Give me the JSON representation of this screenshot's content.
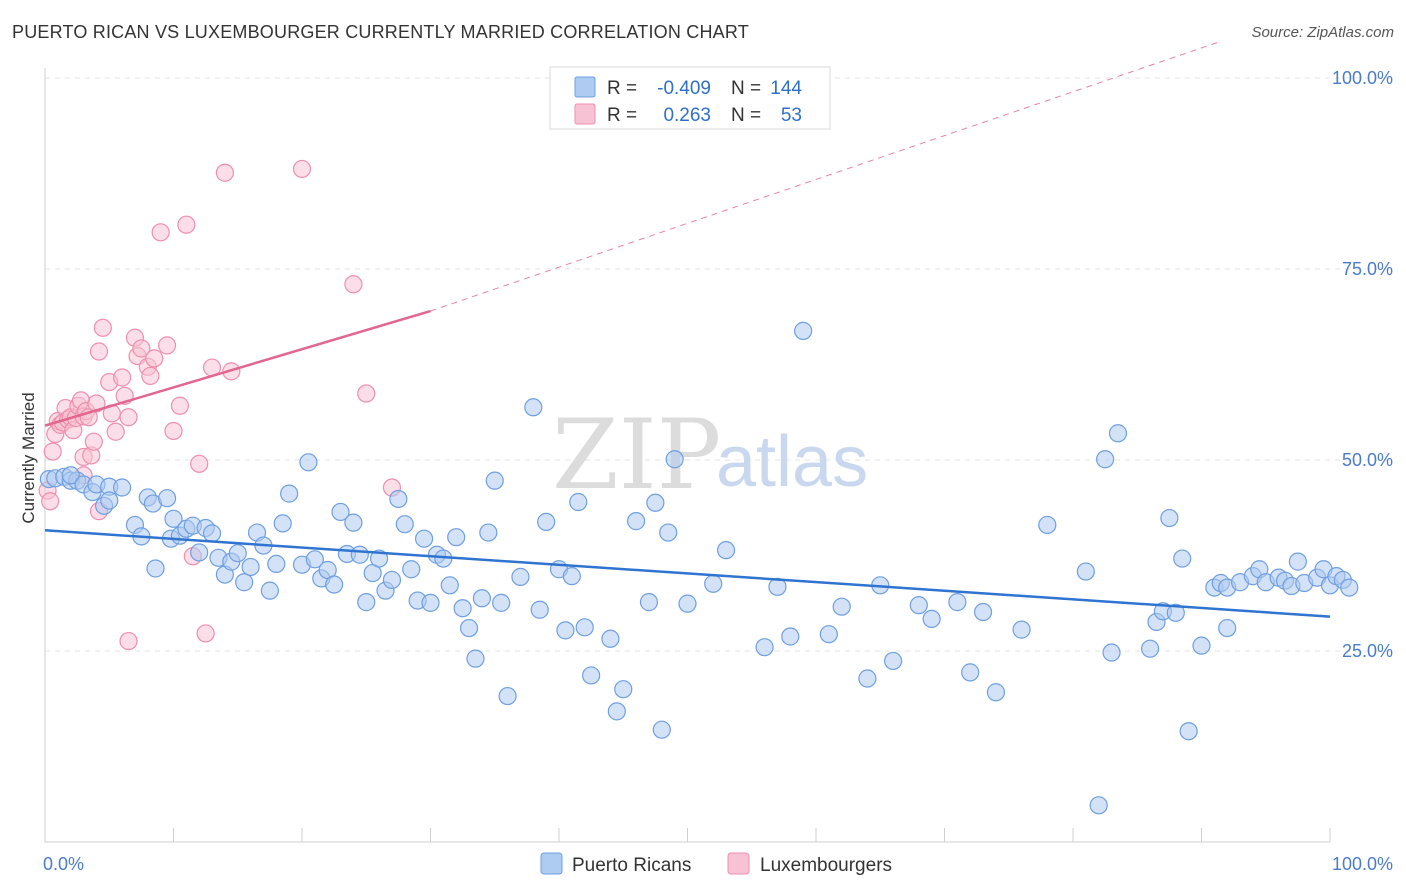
{
  "header": {
    "title": "PUERTO RICAN VS LUXEMBOURGER CURRENTLY MARRIED CORRELATION CHART",
    "source": "Source: ZipAtlas.com"
  },
  "watermark": {
    "zip": "ZIP",
    "atlas": "atlas"
  },
  "colors": {
    "blue": "#6f9fe0",
    "blue_fill": "#aecbf1",
    "blue_line": "#2f74d0",
    "pink": "#ee8fae",
    "pink_fill": "#f7c3d4",
    "pink_line": "#e2668f",
    "grid": "#e3e3e3",
    "tick_text": "#4a7cc9"
  },
  "legend": {
    "r_label": "R =",
    "n_label": "N =",
    "rows": [
      {
        "r": "-0.409",
        "n": "144"
      },
      {
        "r": "0.263",
        "n": "53"
      }
    ]
  },
  "bottom_legend": [
    "Puerto Ricans",
    "Luxembourgers"
  ],
  "chart_data": {
    "type": "scatter",
    "title": "PUERTO RICAN VS LUXEMBOURGER CURRENTLY MARRIED CORRELATION CHART",
    "xlabel": "",
    "ylabel": "Currently Married",
    "xlim": [
      0,
      100
    ],
    "ylim": [
      0,
      100
    ],
    "x_tick_labels": [
      "0.0%",
      "100.0%"
    ],
    "y_tick_labels": [
      "25.0%",
      "50.0%",
      "75.0%",
      "100.0%"
    ],
    "y_ticks": [
      25,
      50,
      75,
      100
    ],
    "grid": true,
    "legend_position": "top-center",
    "series": [
      {
        "name": "Puerto Ricans",
        "r": -0.409,
        "n": 144,
        "trend": {
          "x": [
            0,
            100
          ],
          "y": [
            40.8,
            29.5
          ]
        },
        "points": [
          [
            0.3,
            47.5
          ],
          [
            0.8,
            47.6
          ],
          [
            1.5,
            47.8
          ],
          [
            2,
            47.3
          ],
          [
            2.5,
            47.3
          ],
          [
            2,
            48
          ],
          [
            3,
            46.8
          ],
          [
            3.7,
            45.8
          ],
          [
            4,
            46.8
          ],
          [
            4.6,
            44
          ],
          [
            5,
            46.5
          ],
          [
            5,
            44.7
          ],
          [
            6,
            46.4
          ],
          [
            7,
            41.5
          ],
          [
            7.5,
            40
          ],
          [
            8,
            45.1
          ],
          [
            8.4,
            44.3
          ],
          [
            8.6,
            35.8
          ],
          [
            9.5,
            45
          ],
          [
            9.8,
            39.7
          ],
          [
            10,
            42.3
          ],
          [
            10.5,
            40.1
          ],
          [
            11,
            41
          ],
          [
            11.5,
            41.4
          ],
          [
            12,
            37.9
          ],
          [
            12.5,
            41.1
          ],
          [
            13,
            40.4
          ],
          [
            13.5,
            37.2
          ],
          [
            14,
            35
          ],
          [
            14.5,
            36.7
          ],
          [
            15,
            37.8
          ],
          [
            15.5,
            34
          ],
          [
            16,
            36
          ],
          [
            16.5,
            40.5
          ],
          [
            17,
            38.8
          ],
          [
            17.5,
            32.9
          ],
          [
            18,
            36.4
          ],
          [
            18.5,
            41.7
          ],
          [
            19,
            45.6
          ],
          [
            20,
            36.3
          ],
          [
            20.5,
            49.7
          ],
          [
            21,
            37
          ],
          [
            21.5,
            34.5
          ],
          [
            22,
            35.6
          ],
          [
            22.5,
            33.7
          ],
          [
            23,
            43.2
          ],
          [
            23.5,
            37.7
          ],
          [
            24,
            41.8
          ],
          [
            24.5,
            37.6
          ],
          [
            25,
            31.4
          ],
          [
            25.5,
            35.2
          ],
          [
            26,
            37.1
          ],
          [
            26.5,
            32.9
          ],
          [
            27,
            34.3
          ],
          [
            27.5,
            44.9
          ],
          [
            28,
            41.6
          ],
          [
            28.5,
            35.7
          ],
          [
            29,
            31.6
          ],
          [
            29.5,
            39.7
          ],
          [
            30,
            31.3
          ],
          [
            30.5,
            37.6
          ],
          [
            31,
            37.1
          ],
          [
            31.5,
            33.6
          ],
          [
            32,
            39.9
          ],
          [
            32.5,
            30.6
          ],
          [
            33,
            28
          ],
          [
            33.5,
            24
          ],
          [
            34,
            31.9
          ],
          [
            34.5,
            40.5
          ],
          [
            35,
            47.3
          ],
          [
            35.5,
            31.3
          ],
          [
            36,
            19.1
          ],
          [
            37,
            34.7
          ],
          [
            38,
            56.9
          ],
          [
            38.5,
            30.4
          ],
          [
            39,
            41.9
          ],
          [
            40,
            35.7
          ],
          [
            40.5,
            27.7
          ],
          [
            41,
            34.8
          ],
          [
            41.5,
            44.5
          ],
          [
            42,
            28.1
          ],
          [
            42.5,
            21.8
          ],
          [
            44,
            26.6
          ],
          [
            44.5,
            17.1
          ],
          [
            45,
            20
          ],
          [
            46,
            42
          ],
          [
            47,
            31.4
          ],
          [
            47.5,
            44.4
          ],
          [
            48,
            14.7
          ],
          [
            48.5,
            40.5
          ],
          [
            49,
            50.1
          ],
          [
            50,
            31.2
          ],
          [
            52,
            33.8
          ],
          [
            53,
            38.2
          ],
          [
            56,
            25.5
          ],
          [
            57,
            33.4
          ],
          [
            58,
            26.9
          ],
          [
            59,
            66.9
          ],
          [
            61,
            27.2
          ],
          [
            62,
            30.8
          ],
          [
            64,
            21.4
          ],
          [
            65,
            33.6
          ],
          [
            66,
            23.7
          ],
          [
            68,
            31
          ],
          [
            69,
            29.2
          ],
          [
            71,
            31.4
          ],
          [
            72,
            22.2
          ],
          [
            73,
            30.1
          ],
          [
            74,
            19.6
          ],
          [
            76,
            27.8
          ],
          [
            78,
            41.5
          ],
          [
            81,
            35.4
          ],
          [
            82,
            4.8
          ],
          [
            82.5,
            50.1
          ],
          [
            83,
            24.8
          ],
          [
            83.5,
            53.5
          ],
          [
            86,
            25.3
          ],
          [
            86.5,
            28.8
          ],
          [
            87,
            30.2
          ],
          [
            87.5,
            42.4
          ],
          [
            88,
            30
          ],
          [
            88.5,
            37.1
          ],
          [
            89,
            14.5
          ],
          [
            90,
            25.7
          ],
          [
            91,
            33.3
          ],
          [
            91.5,
            33.9
          ],
          [
            92,
            28
          ],
          [
            92,
            33.3
          ],
          [
            93,
            34
          ],
          [
            94,
            34.8
          ],
          [
            94.5,
            35.7
          ],
          [
            95,
            34
          ],
          [
            96,
            34.6
          ],
          [
            96.5,
            34.2
          ],
          [
            97,
            33.5
          ],
          [
            97.5,
            36.7
          ],
          [
            98,
            33.9
          ],
          [
            99,
            34.6
          ],
          [
            99.5,
            35.7
          ],
          [
            100,
            33.6
          ],
          [
            100.5,
            34.8
          ],
          [
            101,
            34.3
          ],
          [
            101.5,
            33.3
          ]
        ]
      },
      {
        "name": "Luxembourgers",
        "r": 0.263,
        "n": 53,
        "trend": {
          "x": [
            0,
            30
          ],
          "y": [
            54.5,
            69.5
          ],
          "dashed_to": [
            100,
            104.5
          ]
        },
        "points": [
          [
            0.2,
            46
          ],
          [
            0.4,
            44.6
          ],
          [
            0.6,
            51.1
          ],
          [
            0.8,
            53.4
          ],
          [
            1,
            55.1
          ],
          [
            1.2,
            54.6
          ],
          [
            1.4,
            54.9
          ],
          [
            1.6,
            56.8
          ],
          [
            1.8,
            55.3
          ],
          [
            2,
            55.6
          ],
          [
            2.2,
            53.9
          ],
          [
            2.4,
            55.5
          ],
          [
            2.6,
            57.1
          ],
          [
            2.8,
            57.8
          ],
          [
            3,
            55.7
          ],
          [
            3,
            50.4
          ],
          [
            3.2,
            56.4
          ],
          [
            3.4,
            55.6
          ],
          [
            3.6,
            50.6
          ],
          [
            3.8,
            52.4
          ],
          [
            4,
            57.4
          ],
          [
            4.2,
            64.2
          ],
          [
            4.5,
            67.3
          ],
          [
            5,
            60.2
          ],
          [
            5.2,
            56.1
          ],
          [
            5.5,
            53.7
          ],
          [
            6,
            60.8
          ],
          [
            6.2,
            58.4
          ],
          [
            6.5,
            55.6
          ],
          [
            7,
            66
          ],
          [
            7.2,
            63.6
          ],
          [
            7.5,
            64.6
          ],
          [
            8,
            62.2
          ],
          [
            8.2,
            61
          ],
          [
            8.5,
            63.3
          ],
          [
            9,
            79.8
          ],
          [
            9.5,
            65
          ],
          [
            10,
            53.8
          ],
          [
            10.5,
            57.1
          ],
          [
            11,
            80.8
          ],
          [
            11.5,
            37.4
          ],
          [
            12,
            49.5
          ],
          [
            12.5,
            27.3
          ],
          [
            13,
            62.1
          ],
          [
            14,
            87.6
          ],
          [
            14.5,
            61.6
          ],
          [
            20,
            88.1
          ],
          [
            24,
            73
          ],
          [
            25,
            58.7
          ],
          [
            27,
            46.4
          ],
          [
            4.2,
            43.3
          ],
          [
            6.5,
            26.3
          ],
          [
            3,
            48
          ]
        ]
      }
    ]
  }
}
